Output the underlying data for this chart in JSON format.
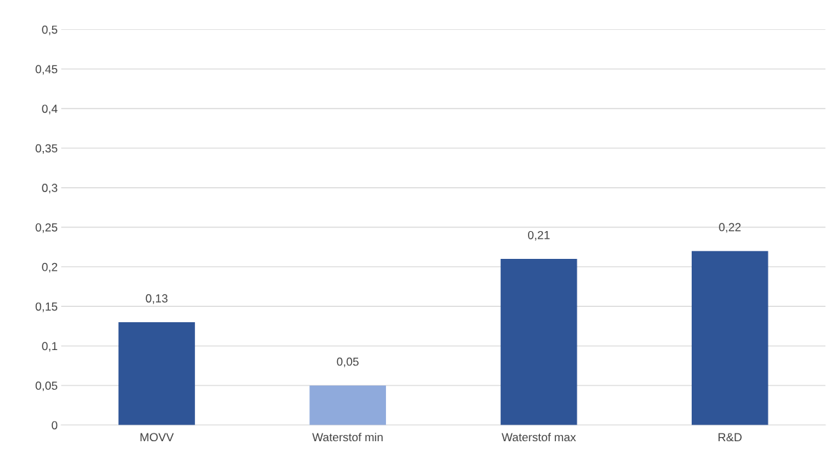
{
  "chart_data": {
    "type": "bar",
    "categories": [
      "MOVV",
      "Waterstof min",
      "Waterstof max",
      "R&D"
    ],
    "values": [
      0.13,
      0.05,
      0.21,
      0.22
    ],
    "colors": [
      "#2f5597",
      "#8faadc",
      "#2f5597",
      "#2f5597"
    ],
    "value_labels": [
      "0,13",
      "0,05",
      "0,21",
      "0,22"
    ],
    "ylim": [
      0,
      0.5
    ],
    "yticks": [
      {
        "value": 0,
        "label": "0"
      },
      {
        "value": 0.05,
        "label": "0,05"
      },
      {
        "value": 0.1,
        "label": "0,1"
      },
      {
        "value": 0.15,
        "label": "0,15"
      },
      {
        "value": 0.2,
        "label": "0,2"
      },
      {
        "value": 0.25,
        "label": "0,25"
      },
      {
        "value": 0.3,
        "label": "0,3"
      },
      {
        "value": 0.35,
        "label": "0,35"
      },
      {
        "value": 0.4,
        "label": "0,4"
      },
      {
        "value": 0.45,
        "label": "0,45"
      },
      {
        "value": 0.5,
        "label": "0,5"
      }
    ],
    "grid": "y"
  }
}
